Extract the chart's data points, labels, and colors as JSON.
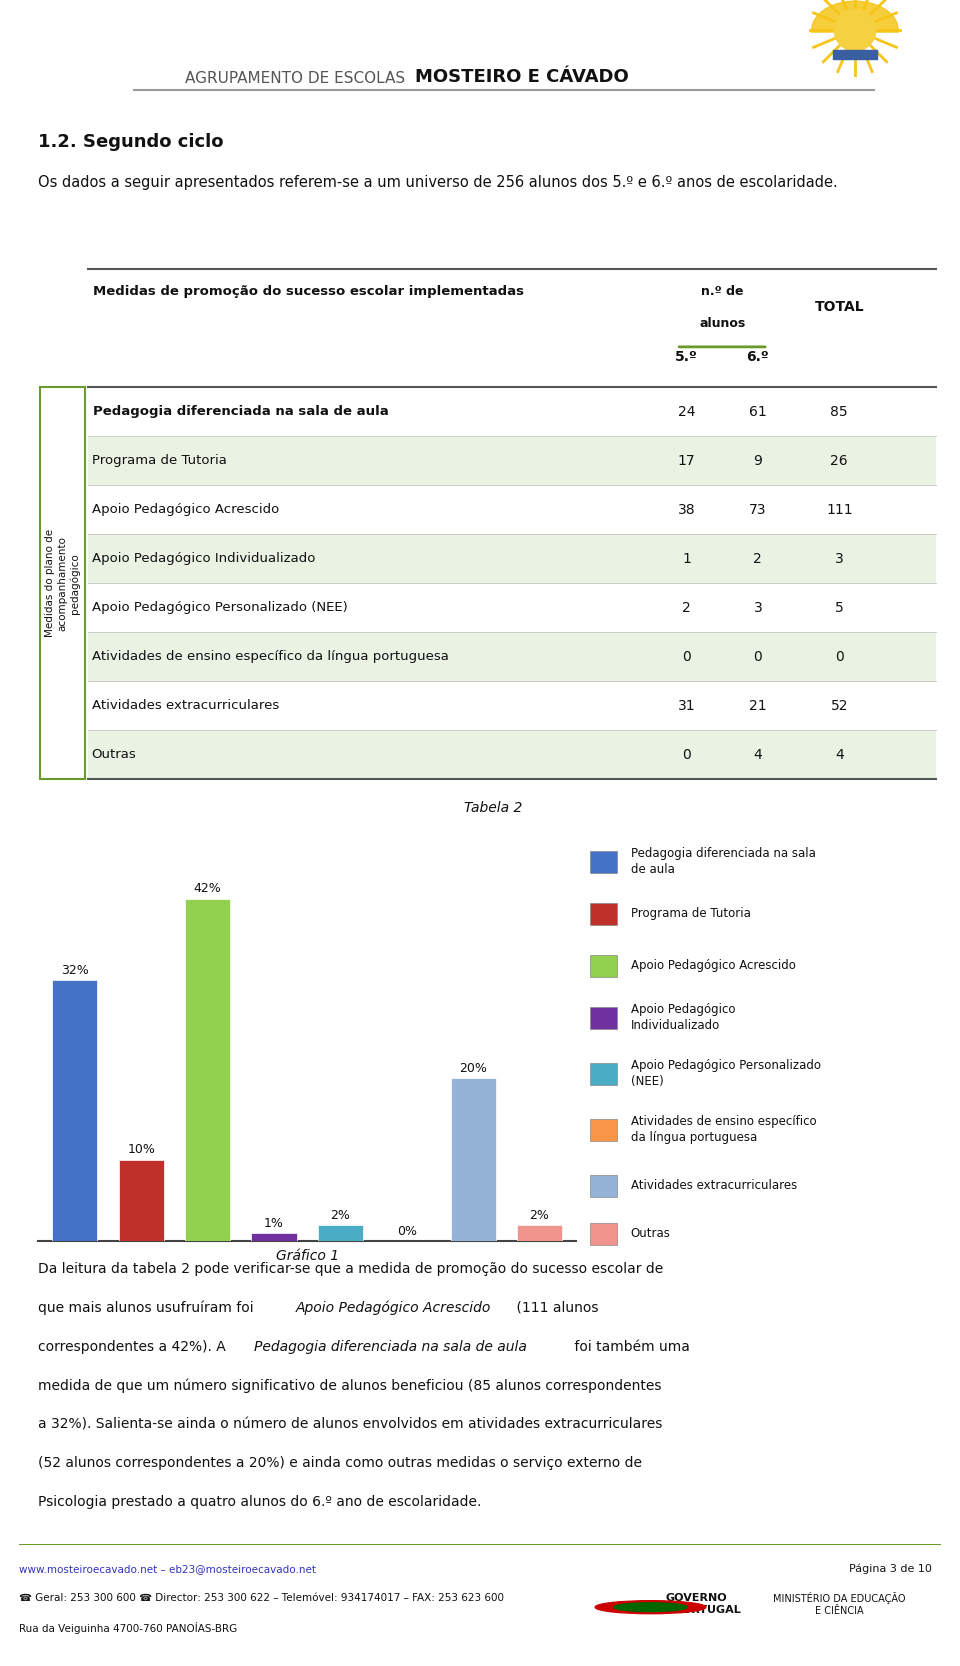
{
  "section_title": "1.2. Segundo ciclo",
  "intro_text": "Os dados a seguir apresentados referem-se a um universo de 256 alunos dos 5.º e 6.º anos de escolaridade.",
  "table_header_col1": "Medidas de promoção do sucesso escolar implementadas",
  "table_header_total": "TOTAL",
  "table_rows": [
    {
      "label": "Pedagogia diferenciada na sala de aula",
      "bold": true,
      "indent": false,
      "v5": 24,
      "v6": 61,
      "total": 85,
      "bg": "#ffffff"
    },
    {
      "label": "Programa de Tutoria",
      "bold": false,
      "indent": true,
      "v5": 17,
      "v6": 9,
      "total": 26,
      "bg": "#eaf2e3"
    },
    {
      "label": "Apoio Pedagógico Acrescido",
      "bold": false,
      "indent": true,
      "v5": 38,
      "v6": 73,
      "total": 111,
      "bg": "#ffffff"
    },
    {
      "label": "Apoio Pedagógico Individualizado",
      "bold": false,
      "indent": true,
      "v5": 1,
      "v6": 2,
      "total": 3,
      "bg": "#eaf2e3"
    },
    {
      "label": "Apoio Pedagógico Personalizado (NEE)",
      "bold": false,
      "indent": true,
      "v5": 2,
      "v6": 3,
      "total": 5,
      "bg": "#ffffff"
    },
    {
      "label": "Atividades de ensino específico da língua portuguesa",
      "bold": false,
      "indent": true,
      "v5": 0,
      "v6": 0,
      "total": 0,
      "bg": "#eaf2e3"
    },
    {
      "label": "Atividades extracurriculares",
      "bold": false,
      "indent": true,
      "v5": 31,
      "v6": 21,
      "total": 52,
      "bg": "#ffffff"
    },
    {
      "label": "Outras",
      "bold": false,
      "indent": true,
      "v5": 0,
      "v6": 4,
      "total": 4,
      "bg": "#eaf2e3"
    }
  ],
  "rotated_label": "Medidas do plano de\nacompanhamento\npedagógico",
  "table_caption": "Tabela 2",
  "chart_values": [
    32,
    10,
    42,
    1,
    2,
    0,
    20,
    2
  ],
  "chart_colors": [
    "#4472c4",
    "#c0302a",
    "#92d14f",
    "#7030a0",
    "#4bacc6",
    "#f79647",
    "#95b3d7",
    "#f2948e"
  ],
  "chart_labels": [
    "32%",
    "10%",
    "42%",
    "1%",
    "2%",
    "0%",
    "20%",
    "2%"
  ],
  "chart_caption": "Gráfico 1",
  "legend_entries": [
    {
      "label": "Pedagogia diferenciada na sala\nde aula",
      "color": "#4472c4"
    },
    {
      "label": "Programa de Tutoria",
      "color": "#c0302a"
    },
    {
      "label": "Apoio Pedagógico Acrescido",
      "color": "#92d14f"
    },
    {
      "label": "Apoio Pedagógico\nIndividualizado",
      "color": "#7030a0"
    },
    {
      "label": "Apoio Pedagógico Personalizado\n(NEE)",
      "color": "#4bacc6"
    },
    {
      "label": "Atividades de ensino específico\nda língua portuguesa",
      "color": "#f79647"
    },
    {
      "label": "Atividades extracurriculares",
      "color": "#95b3d7"
    },
    {
      "label": "Outras",
      "color": "#f2948e"
    }
  ],
  "bottom_text_parts": [
    {
      "text": "Da leitura da tabela 2 pode verificar-se que a medida de promoção do sucesso escolar de que mais alunos usufruíram foi ",
      "style": "normal"
    },
    {
      "text": "Apoio Pedagógico Acrescido",
      "style": "italic"
    },
    {
      "text": " (111 alunos correspondentes a 42%). A ",
      "style": "normal"
    },
    {
      "text": "Pedagogia diferenciada na sala de aula",
      "style": "italic"
    },
    {
      "text": " foi também uma medida de que um número significativo de alunos beneficiou (85 alunos correspondentes a 32%). Salienta-se ainda o número de alunos envolvidos em atividades extracurriculares (52 alunos correspondentes a 20%) e ainda como outras medidas o serviço externo de Psicologia prestado a quatro alunos do 6.º ano de escolaridade.",
      "style": "normal"
    }
  ],
  "footer_left_line1": "www.mosteiroecavado.net – eb23@mosteiroecavado.net",
  "footer_left_line2": "☎ Geral: 253 300 600 ☎ Director: 253 300 622 – Telemóvel: 934174017 – FAX: 253 623 600",
  "footer_left_line3": "Rua da Veiguinha 4700-760 PANOÍAS-BRG",
  "footer_right": "Página 3 de 10",
  "bg_color": "#ffffff",
  "accent_color": "#6a9a2a",
  "header_line_color": "#999999",
  "table_line_color": "#555555",
  "row_line_color": "#cccccc"
}
